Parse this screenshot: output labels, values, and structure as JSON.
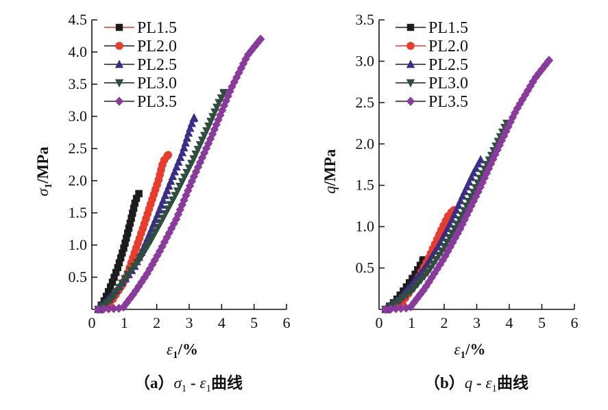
{
  "chart_data": [
    {
      "type": "line",
      "caption": {
        "prefix": "（a）",
        "sym1": "σ",
        "sub1": "1",
        "dash": " - ",
        "sym2": "ε",
        "sub2": "1",
        "suffix": "曲线"
      },
      "xlabel": {
        "sym": "ε",
        "sub": "1",
        "unit": "/%"
      },
      "ylabel": {
        "sym": "σ",
        "sub": "1",
        "unit": "/MPa"
      },
      "xlim": [
        0,
        6
      ],
      "ylim": [
        0,
        4.5
      ],
      "xticks": [
        "0",
        "1",
        "2",
        "3",
        "4",
        "5",
        "6"
      ],
      "yticks": [
        "0.5",
        "1.0",
        "1.5",
        "2.0",
        "2.5",
        "3.0",
        "3.5",
        "4.0",
        "4.5"
      ],
      "grid": false,
      "legend_position": "top-left",
      "series": [
        {
          "name": "PL1.5",
          "marker": "square",
          "color": "#1c1c1c",
          "line_color": "#e03a2c",
          "points": [
            [
              0.2,
              0
            ],
            [
              0.4,
              0.15
            ],
            [
              0.6,
              0.38
            ],
            [
              0.8,
              0.65
            ],
            [
              1.0,
              0.98
            ],
            [
              1.2,
              1.38
            ],
            [
              1.35,
              1.7
            ],
            [
              1.45,
              1.8
            ]
          ]
        },
        {
          "name": "PL2.0",
          "marker": "circle",
          "color": "#ea3b2b",
          "line_color": "#1c1c1c",
          "points": [
            [
              0.3,
              0
            ],
            [
              0.6,
              0.12
            ],
            [
              0.9,
              0.35
            ],
            [
              1.1,
              0.55
            ],
            [
              1.33,
              0.9
            ],
            [
              1.6,
              1.3
            ],
            [
              1.82,
              1.65
            ],
            [
              2.05,
              2.0
            ],
            [
              2.2,
              2.3
            ],
            [
              2.35,
              2.4
            ]
          ]
        },
        {
          "name": "PL2.5",
          "marker": "triangle-up",
          "color": "#3a2d8a",
          "line_color": "#1c1c1c",
          "points": [
            [
              0.2,
              0
            ],
            [
              0.6,
              0.2
            ],
            [
              1.0,
              0.45
            ],
            [
              1.3,
              0.65
            ],
            [
              1.54,
              0.9
            ],
            [
              1.8,
              1.2
            ],
            [
              2.03,
              1.48
            ],
            [
              2.4,
              1.95
            ],
            [
              2.8,
              2.45
            ],
            [
              3.05,
              2.85
            ],
            [
              3.15,
              2.98
            ]
          ]
        },
        {
          "name": "PL3.0",
          "marker": "triangle-down",
          "color": "#2e4e40",
          "line_color": "#1c1c1c",
          "points": [
            [
              0.2,
              0
            ],
            [
              0.6,
              0.15
            ],
            [
              1.12,
              0.55
            ],
            [
              1.5,
              0.8
            ],
            [
              1.8,
              1.05
            ],
            [
              2.18,
              1.4
            ],
            [
              2.6,
              1.8
            ],
            [
              3.09,
              2.29
            ],
            [
              3.6,
              2.85
            ],
            [
              3.9,
              3.2
            ],
            [
              4.08,
              3.37
            ]
          ]
        },
        {
          "name": "PL3.5",
          "marker": "diamond",
          "color": "#8a3a9c",
          "line_color": "#1c1c1c",
          "points": [
            [
              0.2,
              0
            ],
            [
              0.95,
              0.02
            ],
            [
              1.3,
              0.25
            ],
            [
              1.7,
              0.55
            ],
            [
              2.09,
              0.9
            ],
            [
              2.6,
              1.4
            ],
            [
              3.09,
              2.0
            ],
            [
              3.7,
              2.7
            ],
            [
              4.29,
              3.43
            ],
            [
              4.8,
              3.95
            ],
            [
              5.2,
              4.2
            ]
          ]
        }
      ]
    },
    {
      "type": "line",
      "caption": {
        "prefix": "（b）",
        "sym1": "q",
        "sub1": "",
        "dash": " - ",
        "sym2": "ε",
        "sub2": "1",
        "suffix": "曲线"
      },
      "xlabel": {
        "sym": "ε",
        "sub": "1",
        "unit": "/%"
      },
      "ylabel": {
        "sym": "q",
        "sub": "",
        "unit": "/MPa"
      },
      "xlim": [
        0,
        6
      ],
      "ylim": [
        0,
        3.5
      ],
      "xticks": [
        "0",
        "1",
        "2",
        "3",
        "4",
        "5",
        "6"
      ],
      "yticks": [
        "0.5",
        "1.0",
        "1.5",
        "2.0",
        "2.5",
        "3.0",
        "3.5"
      ],
      "grid": false,
      "legend_position": "top-left",
      "series": [
        {
          "name": "PL1.5",
          "marker": "square",
          "color": "#1c1c1c",
          "line_color": "#1c1c1c",
          "points": [
            [
              0.2,
              0
            ],
            [
              0.5,
              0.1
            ],
            [
              0.8,
              0.25
            ],
            [
              1.1,
              0.42
            ],
            [
              1.36,
              0.6
            ]
          ]
        },
        {
          "name": "PL2.0",
          "marker": "circle",
          "color": "#ea3b2b",
          "line_color": "#e03a2c",
          "points": [
            [
              0.3,
              0
            ],
            [
              0.7,
              0.08
            ],
            [
              1.1,
              0.3
            ],
            [
              1.5,
              0.6
            ],
            [
              1.9,
              0.95
            ],
            [
              2.15,
              1.15
            ],
            [
              2.3,
              1.2
            ]
          ]
        },
        {
          "name": "PL2.5",
          "marker": "triangle-up",
          "color": "#3a2d8a",
          "line_color": "#1c1c1c",
          "points": [
            [
              0.2,
              0
            ],
            [
              0.6,
              0.12
            ],
            [
              1.0,
              0.3
            ],
            [
              1.4,
              0.5
            ],
            [
              1.8,
              0.75
            ],
            [
              2.2,
              1.05
            ],
            [
              2.6,
              1.4
            ],
            [
              2.9,
              1.65
            ],
            [
              3.12,
              1.81
            ]
          ]
        },
        {
          "name": "PL3.0",
          "marker": "triangle-down",
          "color": "#2e4e40",
          "line_color": "#1c1c1c",
          "points": [
            [
              0.2,
              0
            ],
            [
              0.6,
              0.1
            ],
            [
              1.0,
              0.22
            ],
            [
              1.5,
              0.45
            ],
            [
              2.0,
              0.75
            ],
            [
              2.5,
              1.1
            ],
            [
              3.0,
              1.5
            ],
            [
              3.5,
              1.9
            ],
            [
              3.92,
              2.25
            ]
          ]
        },
        {
          "name": "PL3.5",
          "marker": "diamond",
          "color": "#8a3a9c",
          "line_color": "#1c1c1c",
          "points": [
            [
              0.2,
              0
            ],
            [
              0.95,
              0.02
            ],
            [
              1.4,
              0.25
            ],
            [
              2.0,
              0.62
            ],
            [
              2.5,
              0.98
            ],
            [
              3.08,
              1.45
            ],
            [
              3.6,
              1.9
            ],
            [
              4.2,
              2.4
            ],
            [
              4.8,
              2.8
            ],
            [
              5.22,
              3.01
            ]
          ]
        }
      ]
    }
  ]
}
